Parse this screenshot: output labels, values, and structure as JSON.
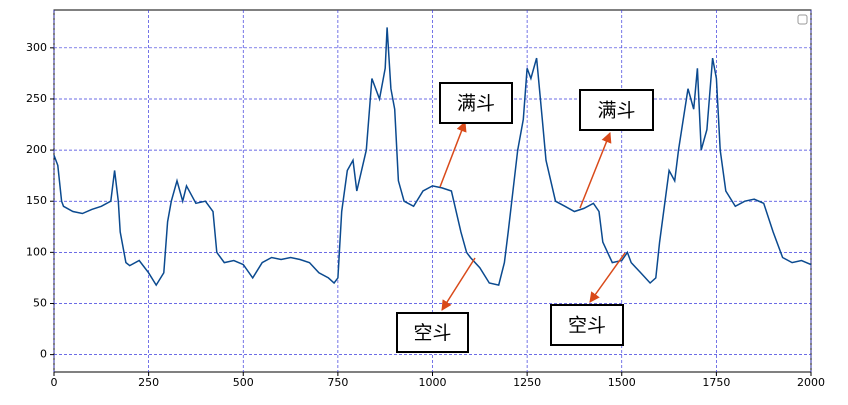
{
  "chart_data": {
    "type": "line",
    "x": [
      0,
      10,
      20,
      25,
      50,
      75,
      100,
      125,
      150,
      160,
      170,
      175,
      190,
      200,
      225,
      250,
      270,
      290,
      300,
      310,
      325,
      340,
      350,
      375,
      400,
      420,
      430,
      450,
      475,
      500,
      525,
      550,
      575,
      600,
      625,
      650,
      675,
      700,
      725,
      740,
      750,
      760,
      775,
      790,
      800,
      825,
      840,
      860,
      875,
      880,
      890,
      900,
      910,
      925,
      950,
      975,
      1000,
      1025,
      1050,
      1075,
      1090,
      1100,
      1125,
      1150,
      1175,
      1190,
      1200,
      1225,
      1240,
      1250,
      1260,
      1275,
      1290,
      1300,
      1325,
      1350,
      1375,
      1400,
      1425,
      1440,
      1450,
      1475,
      1500,
      1515,
      1525,
      1550,
      1575,
      1590,
      1600,
      1625,
      1640,
      1650,
      1675,
      1690,
      1700,
      1710,
      1725,
      1740,
      1750,
      1760,
      1775,
      1800,
      1825,
      1850,
      1875,
      1900,
      1925,
      1950,
      1975,
      2000
    ],
    "series": [
      {
        "color": "#0b4a8f",
        "values": [
          195,
          185,
          150,
          145,
          140,
          138,
          142,
          145,
          150,
          180,
          150,
          120,
          90,
          87,
          92,
          80,
          68,
          80,
          130,
          150,
          170,
          150,
          165,
          148,
          150,
          140,
          100,
          90,
          92,
          88,
          75,
          90,
          95,
          93,
          95,
          93,
          90,
          80,
          75,
          70,
          75,
          140,
          180,
          190,
          160,
          200,
          270,
          250,
          280,
          320,
          260,
          240,
          170,
          150,
          145,
          160,
          165,
          163,
          160,
          120,
          100,
          95,
          85,
          70,
          68,
          90,
          120,
          200,
          230,
          280,
          270,
          290,
          230,
          190,
          150,
          145,
          140,
          143,
          148,
          140,
          110,
          90,
          92,
          100,
          90,
          80,
          70,
          75,
          110,
          180,
          170,
          200,
          260,
          240,
          280,
          200,
          220,
          290,
          270,
          200,
          160,
          145,
          150,
          152,
          148,
          120,
          95,
          90,
          92,
          88
        ]
      }
    ],
    "xlim": [
      0,
      2000
    ],
    "ylim": [
      -17,
      337
    ],
    "xticks": [
      0,
      250,
      500,
      750,
      1000,
      1250,
      1500,
      1750,
      2000
    ],
    "yticks": [
      0,
      50,
      100,
      150,
      200,
      250,
      300
    ],
    "grid": true,
    "annotations": [
      "满斗",
      "满斗",
      "空斗",
      "空斗"
    ]
  }
}
